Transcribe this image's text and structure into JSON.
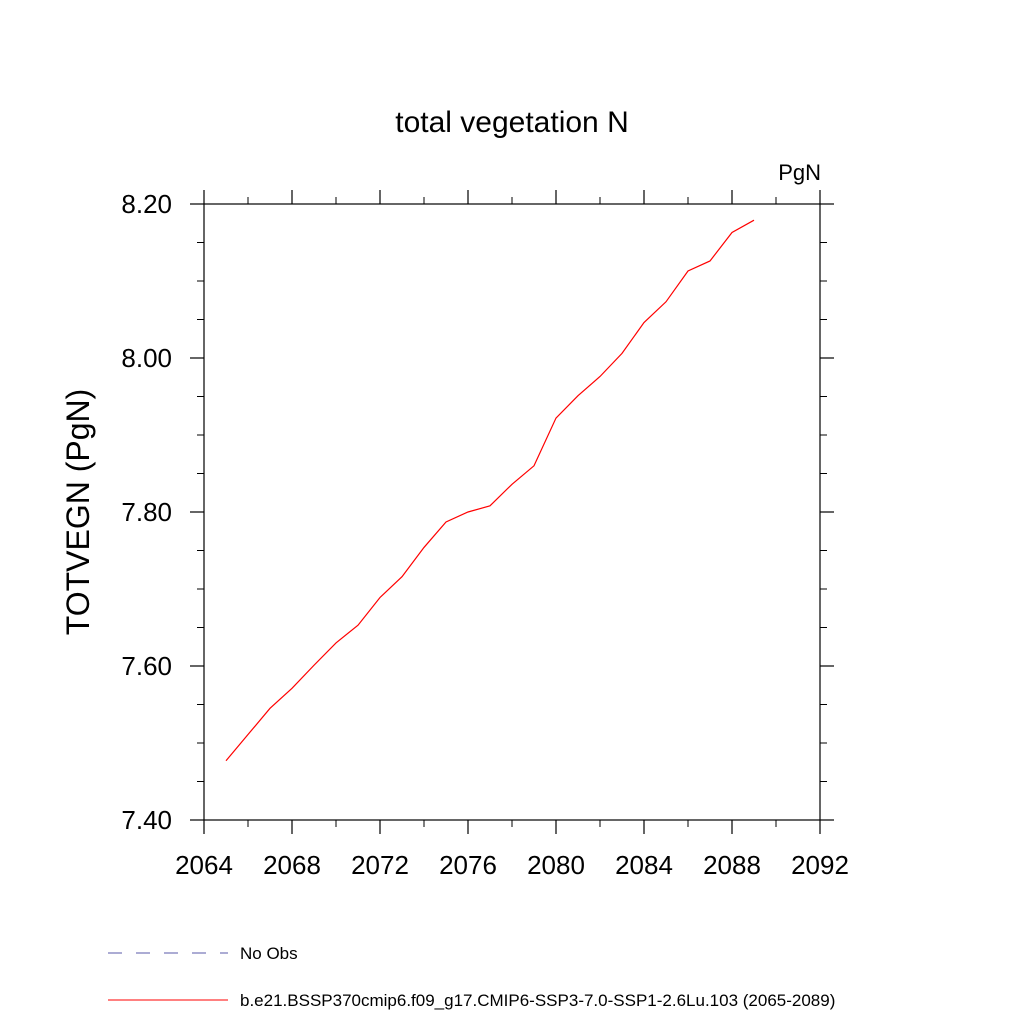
{
  "chart_data": {
    "type": "line",
    "title": "total vegetation N",
    "units": "PgN",
    "ylabel": "TOTVEGN  (PgN)",
    "xlabel": "",
    "xlim": [
      2064,
      2092
    ],
    "ylim": [
      7.4,
      8.2
    ],
    "x_ticks": [
      2064,
      2068,
      2072,
      2076,
      2080,
      2084,
      2088,
      2092
    ],
    "x_tick_labels": [
      "2064",
      "2068",
      "2072",
      "2076",
      "2080",
      "2084",
      "2088",
      "2092"
    ],
    "x_minor_step": 2,
    "y_ticks": [
      7.4,
      7.6,
      7.8,
      8.0,
      8.2
    ],
    "y_tick_labels": [
      "7.40",
      "7.60",
      "7.80",
      "8.00",
      "8.20"
    ],
    "y_minor_step": 0.05,
    "grid": false,
    "series": [
      {
        "name": "b.e21.BSSP370cmip6.f09_g17.CMIP6-SSP3-7.0-SSP1-2.6Lu.103 (2065-2089)",
        "color": "#ff0000",
        "x": [
          2065,
          2066,
          2067,
          2068,
          2069,
          2070,
          2071,
          2072,
          2073,
          2074,
          2075,
          2076,
          2077,
          2078,
          2079,
          2080,
          2081,
          2082,
          2083,
          2084,
          2085,
          2086,
          2087,
          2088,
          2089
        ],
        "values": [
          7.477,
          7.511,
          7.545,
          7.571,
          7.601,
          7.63,
          7.653,
          7.689,
          7.716,
          7.754,
          7.787,
          7.8,
          7.808,
          7.836,
          7.86,
          7.922,
          7.951,
          7.976,
          8.006,
          8.046,
          8.073,
          8.113,
          8.126,
          8.163,
          8.179
        ]
      }
    ],
    "legend": {
      "placement": "bottom-left",
      "entries": [
        {
          "label": "No Obs",
          "style": "dashed",
          "color": "#5a5aa8"
        },
        {
          "label": "b.e21.BSSP370cmip6.f09_g17.CMIP6-SSP3-7.0-SSP1-2.6Lu.103 (2065-2089)",
          "style": "solid",
          "color": "#ff0000"
        }
      ]
    }
  }
}
